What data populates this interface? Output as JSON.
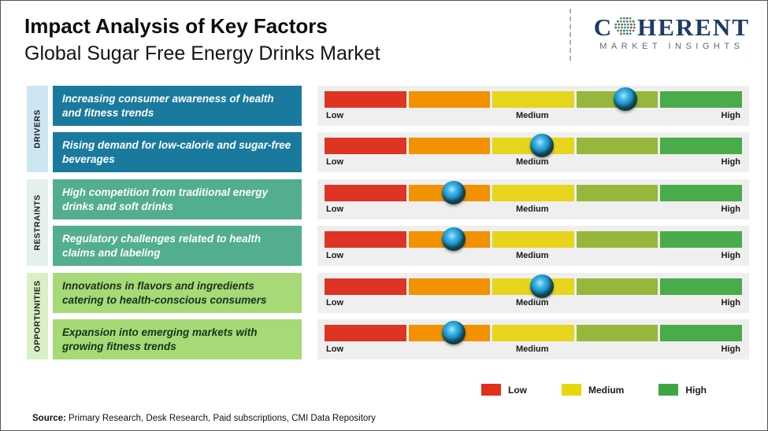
{
  "header": {
    "title": "Impact Analysis of Key Factors",
    "subtitle": "Global Sugar Free Energy Drinks Market"
  },
  "logo": {
    "name_left": "C",
    "name_right": "HERENT",
    "tagline": "MARKET INSIGHTS",
    "brand_color": "#1e3c64"
  },
  "chart_data": {
    "type": "bar",
    "title": "Impact Analysis of Key Factors",
    "subtitle": "Global Sugar Free Energy Drinks Market",
    "scale_labels": [
      "Low",
      "Medium",
      "High"
    ],
    "scale_range_pct": [
      0,
      100
    ],
    "segment_colors": [
      "#de3423",
      "#f29200",
      "#e6d41d",
      "#96b73c",
      "#49ab49"
    ],
    "marker_colors": {
      "ring": "#143f49",
      "core": "#2aa6e0"
    },
    "groups": [
      {
        "label": "DRIVERS",
        "label_bg": "#cde7f2",
        "box_bg": "#1a7a9e",
        "box_text_color": "#ffffff",
        "rows": [
          {
            "factor": "Increasing consumer awareness of health and fitness trends",
            "impact_pct": 72,
            "impact_level": "Medium-High"
          },
          {
            "factor": "Rising demand for low-calorie and sugar-free beverages",
            "impact_pct": 52,
            "impact_level": "Medium"
          }
        ]
      },
      {
        "label": "RESTRAINTS",
        "label_bg": "#e3f1ea",
        "box_bg": "#52ae8e",
        "box_text_color": "#ffffff",
        "rows": [
          {
            "factor": "High competition from traditional energy drinks and soft drinks",
            "impact_pct": 31,
            "impact_level": "Low-Medium"
          },
          {
            "factor": "Regulatory challenges related to health claims and labeling",
            "impact_pct": 31,
            "impact_level": "Low-Medium"
          }
        ]
      },
      {
        "label": "OPPORTUNITIES",
        "label_bg": "#d9efc6",
        "box_bg": "#a7d977",
        "box_text_color": "#16341d",
        "rows": [
          {
            "factor": "Innovations in flavors and ingredients catering to health-conscious consumers",
            "impact_pct": 52,
            "impact_level": "Medium"
          },
          {
            "factor": "Expansion into emerging markets with growing fitness trends",
            "impact_pct": 31,
            "impact_level": "Low-Medium"
          }
        ]
      }
    ],
    "legend": [
      {
        "label": "Low",
        "color": "#e0301e"
      },
      {
        "label": "Medium",
        "color": "#e8d70d"
      },
      {
        "label": "High",
        "color": "#3fa541"
      }
    ],
    "legend_position": "bottom-right"
  },
  "source": {
    "label": "Source:",
    "text": " Primary Research, Desk Research, Paid subscriptions, CMI Data Repository"
  }
}
